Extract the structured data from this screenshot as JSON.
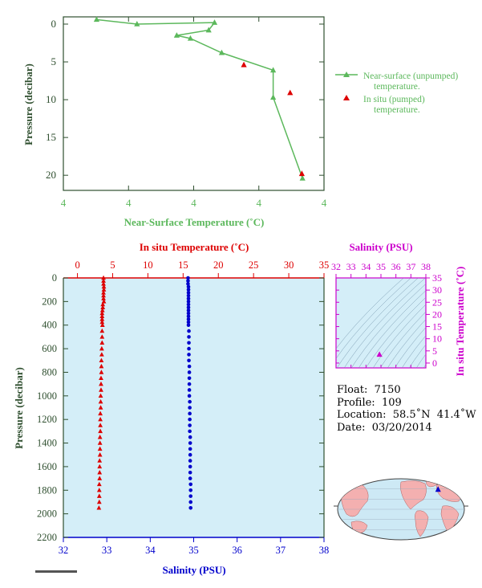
{
  "colors": {
    "green": "#5cb85c",
    "red": "#dd0000",
    "blue": "#0000cc",
    "magenta": "#cc00cc",
    "axis_dark": "#2f4f2f",
    "panel_bg": "#d4eef8",
    "land": "#f4b0b0",
    "ocean": "#cde9f5"
  },
  "chart_data": [
    {
      "type": "line",
      "xlabel": "Near-Surface Temperature (˚C)",
      "ylabel": "Pressure (decibar)",
      "x_tick_labels": [
        "4",
        "4",
        "4",
        "4",
        "4"
      ],
      "y_ticks": [
        0,
        5,
        10,
        15,
        20
      ],
      "y_range": [
        0,
        22
      ],
      "x_range": [
        0,
        4
      ],
      "y_inverted": true,
      "series": [
        {
          "name": "Near-surface (unpumped) temperature.",
          "marker": "triangle",
          "points": [
            {
              "t": 0.51,
              "p": -0.6
            },
            {
              "t": 1.13,
              "p": 0.0
            },
            {
              "t": 2.32,
              "p": -0.2
            },
            {
              "t": 2.23,
              "p": 0.8
            },
            {
              "t": 1.74,
              "p": 1.5
            },
            {
              "t": 1.95,
              "p": 1.9
            },
            {
              "t": 2.43,
              "p": 3.8
            },
            {
              "t": 3.22,
              "p": 6.1
            },
            {
              "t": 3.22,
              "p": 9.7
            },
            {
              "t": 3.67,
              "p": 20.4
            }
          ]
        },
        {
          "name": "In situ (pumped) temperature.",
          "marker": "triangle",
          "points": [
            {
              "t": 2.77,
              "p": 5.4
            },
            {
              "t": 3.48,
              "p": 9.1
            },
            {
              "t": 3.66,
              "p": 19.8
            }
          ]
        }
      ]
    },
    {
      "type": "scatter",
      "ylabel": "Pressure (decibar)",
      "top_xlabel": "In situ Temperature (˚C)",
      "bottom_xlabel": "Salinity (PSU)",
      "temp_ticks": [
        0,
        5,
        10,
        15,
        20,
        25,
        30,
        35
      ],
      "salinity_ticks": [
        32,
        33,
        34,
        35,
        36,
        37,
        38
      ],
      "pressure_ticks": [
        0,
        200,
        400,
        600,
        800,
        1000,
        1200,
        1400,
        1600,
        1800,
        2000,
        2200
      ],
      "temp_range": [
        -2,
        35
      ],
      "salinity_range": [
        32,
        38
      ],
      "pressure_range": [
        0,
        2200
      ],
      "temperature_profile": {
        "pressure": [
          0,
          25,
          50,
          75,
          100,
          125,
          150,
          175,
          200,
          225,
          250,
          275,
          300,
          325,
          350,
          375,
          400,
          450,
          500,
          550,
          600,
          650,
          700,
          750,
          800,
          850,
          900,
          950,
          1000,
          1050,
          1100,
          1150,
          1200,
          1250,
          1300,
          1350,
          1400,
          1450,
          1500,
          1550,
          1600,
          1650,
          1700,
          1750,
          1800,
          1850,
          1900,
          1950
        ],
        "temperature": [
          3.7,
          3.7,
          3.7,
          3.75,
          3.75,
          3.7,
          3.7,
          3.7,
          3.75,
          3.6,
          3.6,
          3.55,
          3.5,
          3.5,
          3.5,
          3.5,
          3.55,
          3.5,
          3.5,
          3.5,
          3.45,
          3.45,
          3.4,
          3.4,
          3.4,
          3.35,
          3.35,
          3.35,
          3.3,
          3.3,
          3.3,
          3.25,
          3.25,
          3.25,
          3.25,
          3.2,
          3.2,
          3.2,
          3.2,
          3.15,
          3.15,
          3.15,
          3.15,
          3.1,
          3.1,
          3.1,
          3.1,
          3.05
        ]
      },
      "salinity_profile": {
        "pressure": [
          0,
          25,
          50,
          75,
          100,
          125,
          150,
          175,
          200,
          225,
          250,
          275,
          300,
          325,
          350,
          375,
          400,
          450,
          500,
          550,
          600,
          650,
          700,
          750,
          800,
          850,
          900,
          950,
          1000,
          1050,
          1100,
          1150,
          1200,
          1250,
          1300,
          1350,
          1400,
          1450,
          1500,
          1550,
          1600,
          1650,
          1700,
          1750,
          1800,
          1850,
          1900,
          1950
        ],
        "salinity": [
          34.87,
          34.87,
          34.87,
          34.88,
          34.88,
          34.88,
          34.88,
          34.88,
          34.88,
          34.88,
          34.88,
          34.88,
          34.88,
          34.88,
          34.88,
          34.88,
          34.88,
          34.89,
          34.89,
          34.89,
          34.89,
          34.89,
          34.89,
          34.9,
          34.9,
          34.9,
          34.9,
          34.9,
          34.9,
          34.91,
          34.91,
          34.91,
          34.91,
          34.91,
          34.91,
          34.92,
          34.92,
          34.92,
          34.92,
          34.92,
          34.92,
          34.92,
          34.92,
          34.93,
          34.93,
          34.93,
          34.93,
          34.93
        ]
      }
    },
    {
      "type": "scatter",
      "xlabel": "Salinity (PSU)",
      "ylabel": "In situ Temperature (˚C)",
      "x_ticks": [
        32,
        33,
        34,
        35,
        36,
        37,
        38
      ],
      "y_ticks": [
        0,
        5,
        10,
        15,
        20,
        25,
        30,
        35
      ],
      "x_range": [
        32,
        38
      ],
      "y_range": [
        -2,
        35
      ],
      "points": [
        {
          "s": 34.9,
          "t": 3.5
        }
      ]
    }
  ],
  "float_info": {
    "float_line": "Float:  7150",
    "profile_line": "Profile:  109",
    "location_line": "Location:  58.5˚N  41.4˚W",
    "date_line": "Date:  03/20/2014"
  },
  "map": {
    "marker_lat": 58.5,
    "marker_lon": -41.4
  }
}
